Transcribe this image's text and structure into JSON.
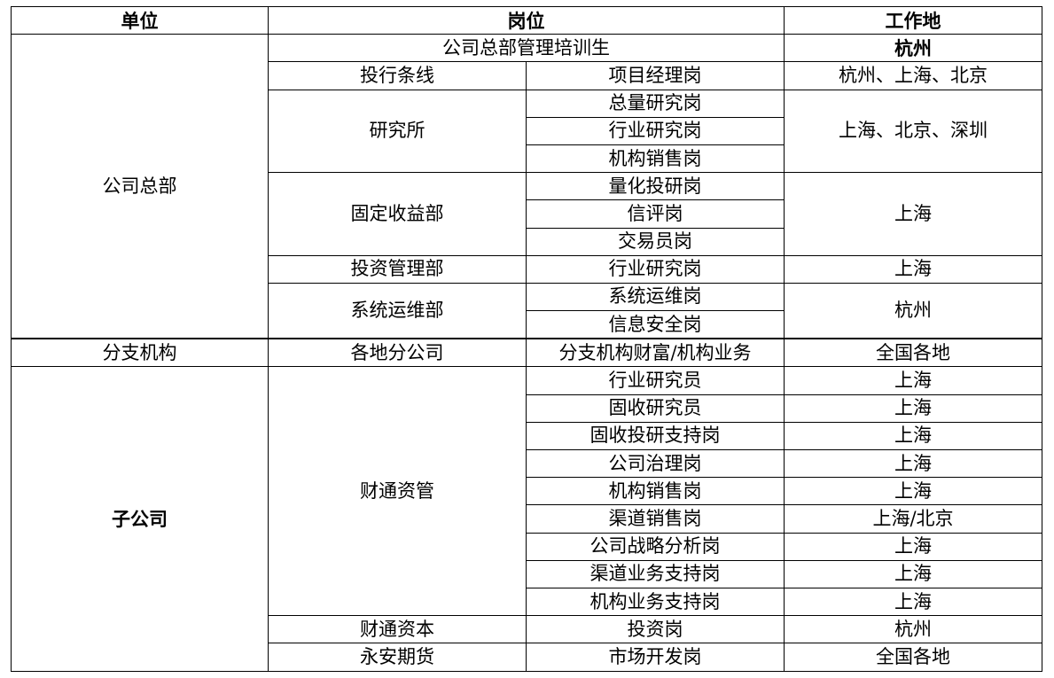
{
  "header": {
    "unit": "单位",
    "position": "岗位",
    "location": "工作地"
  },
  "hq": {
    "label": "公司总部",
    "trainee": {
      "position": "公司总部管理培训生",
      "location": "杭州"
    },
    "ib": {
      "dept": "投行条线",
      "position": "项目经理岗",
      "location": "杭州、上海、北京"
    },
    "research": {
      "dept": "研究所",
      "positions": [
        "总量研究岗",
        "行业研究岗",
        "机构销售岗"
      ],
      "location": "上海、北京、深圳"
    },
    "fixed_income": {
      "dept": "固定收益部",
      "positions": [
        "量化投研岗",
        "信评岗",
        "交易员岗"
      ],
      "location": "上海"
    },
    "investment": {
      "dept": "投资管理部",
      "position": "行业研究岗",
      "location": "上海"
    },
    "ops": {
      "dept": "系统运维部",
      "positions": [
        "系统运维岗",
        "信息安全岗"
      ],
      "location": "杭州"
    }
  },
  "branch": {
    "label": "分支机构",
    "dept": "各地分公司",
    "position": "分支机构财富/机构业务",
    "location": "全国各地"
  },
  "subsidiary": {
    "label": "子公司",
    "am": {
      "dept": "财通资管",
      "rows": [
        {
          "position": "行业研究员",
          "location": "上海"
        },
        {
          "position": "固收研究员",
          "location": "上海"
        },
        {
          "position": "固收投研支持岗",
          "location": "上海"
        },
        {
          "position": "公司治理岗",
          "location": "上海"
        },
        {
          "position": "机构销售岗",
          "location": "上海"
        },
        {
          "position": "渠道销售岗",
          "location": "上海/北京"
        },
        {
          "position": "公司战略分析岗",
          "location": "上海"
        },
        {
          "position": "渠道业务支持岗",
          "location": "上海"
        },
        {
          "position": "机构业务支持岗",
          "location": "上海"
        }
      ]
    },
    "capital": {
      "dept": "财通资本",
      "position": "投资岗",
      "location": "杭州"
    },
    "futures": {
      "dept": "永安期货",
      "position": "市场开发岗",
      "location": "全国各地"
    }
  }
}
